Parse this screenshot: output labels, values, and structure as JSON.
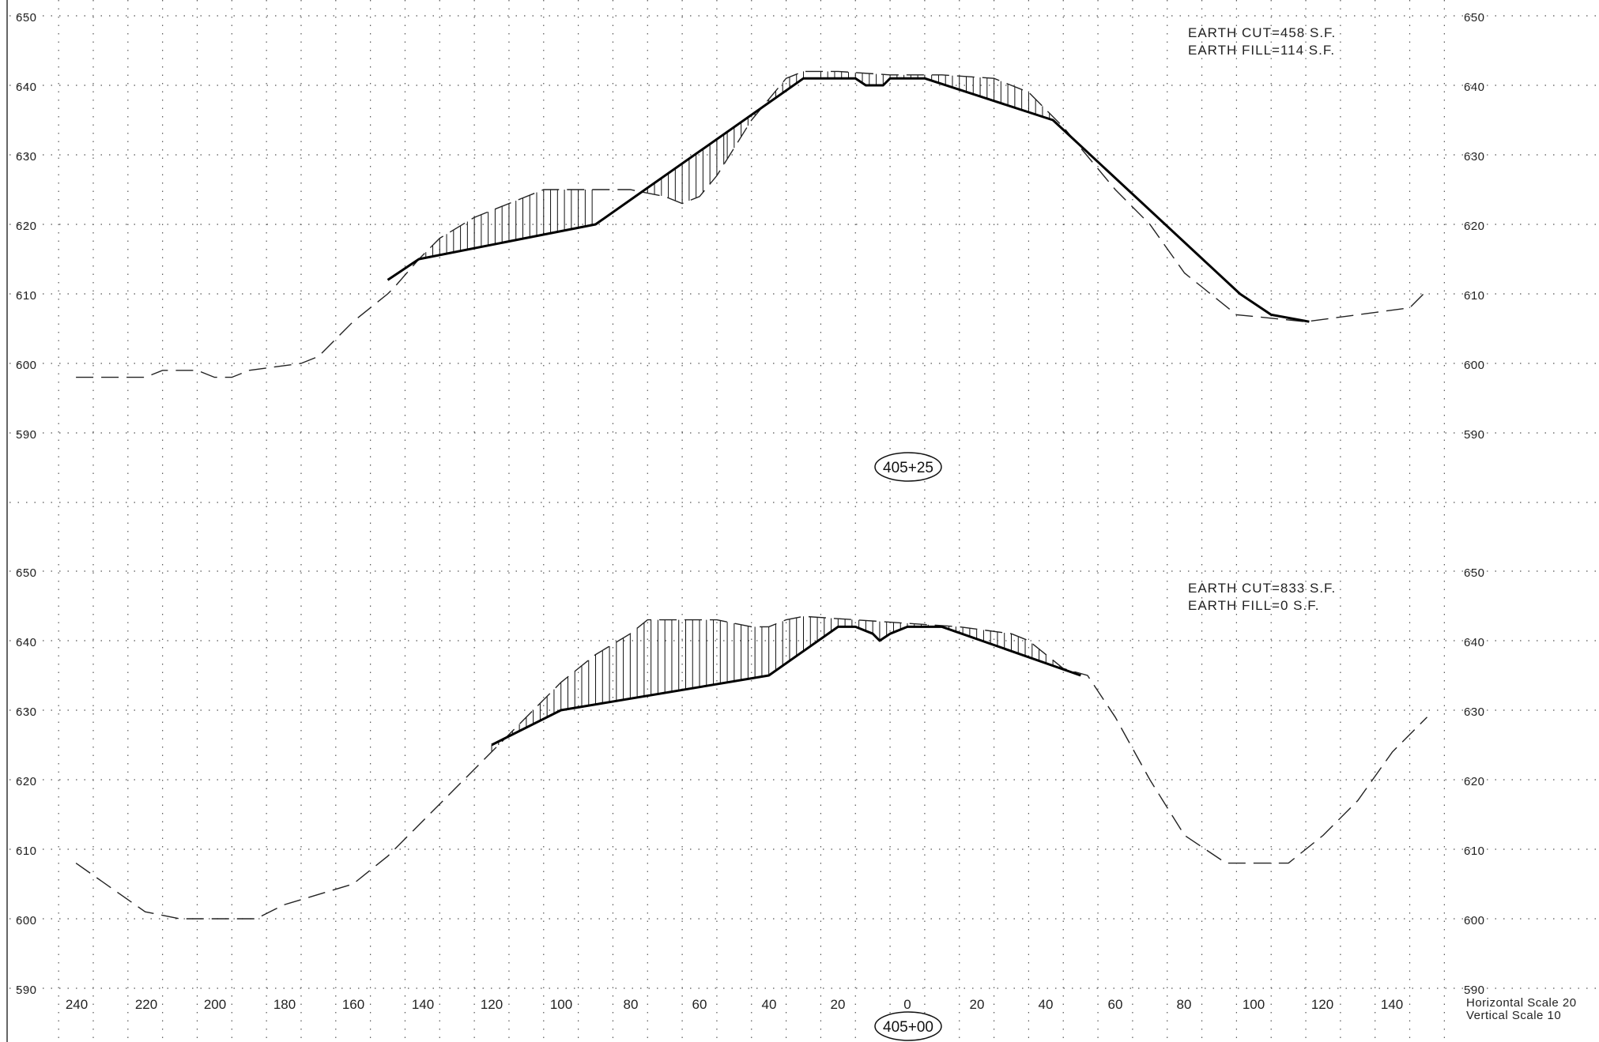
{
  "sections": [
    {
      "station": "405+25",
      "elevation_labels": [
        "650",
        "640",
        "630",
        "620",
        "610",
        "600",
        "590"
      ],
      "earth_cut": "EARTH  CUT=458  S.F.",
      "earth_fill": "EARTH  FILL=114  S.F.",
      "existing_ground": [
        [
          -240,
          598
        ],
        [
          -220,
          598
        ],
        [
          -215,
          599
        ],
        [
          -205,
          599
        ],
        [
          -200,
          598
        ],
        [
          -195,
          598
        ],
        [
          -190,
          599
        ],
        [
          -175,
          600
        ],
        [
          -170,
          601
        ],
        [
          -160,
          606
        ],
        [
          -150,
          610
        ],
        [
          -148,
          611
        ],
        [
          -141,
          615
        ],
        [
          -135,
          618
        ],
        [
          -125,
          621
        ],
        [
          -115,
          623
        ],
        [
          -105,
          625
        ],
        [
          -90,
          625
        ],
        [
          -80,
          625
        ],
        [
          -70,
          624
        ],
        [
          -65,
          623
        ],
        [
          -60,
          624
        ],
        [
          -55,
          627
        ],
        [
          -50,
          631
        ],
        [
          -45,
          635
        ],
        [
          -40,
          638
        ],
        [
          -35,
          641
        ],
        [
          -30,
          642
        ],
        [
          -20,
          642
        ],
        [
          -5,
          641.5
        ],
        [
          10,
          641.5
        ],
        [
          25,
          641
        ],
        [
          35,
          639
        ],
        [
          45,
          634
        ],
        [
          60,
          625
        ],
        [
          70,
          620
        ],
        [
          80,
          613
        ],
        [
          95,
          607
        ],
        [
          105,
          606.5
        ],
        [
          115,
          606
        ],
        [
          130,
          607
        ],
        [
          145,
          608
        ],
        [
          150,
          610.5
        ]
      ],
      "design_section": [
        [
          -150,
          612
        ],
        [
          -141,
          615
        ],
        [
          -90,
          620
        ],
        [
          -30,
          641
        ],
        [
          -25,
          641
        ],
        [
          -15,
          641
        ],
        [
          -12,
          640
        ],
        [
          -7,
          640
        ],
        [
          -5,
          641
        ],
        [
          5,
          641
        ],
        [
          42,
          635
        ],
        [
          96,
          610
        ],
        [
          105,
          607
        ],
        [
          116,
          606
        ]
      ],
      "cut_range": [
        -141,
        -90,
        -52,
        -30,
        -25,
        42
      ],
      "fill_range": [
        -75,
        -52
      ]
    },
    {
      "station": "405+00",
      "elevation_labels": [
        "650",
        "640",
        "630",
        "620",
        "610",
        "600",
        "590"
      ],
      "earth_cut": "EARTH  CUT=833  S.F.",
      "earth_fill": "EARTH  FILL=0  S.F.",
      "existing_ground": [
        [
          -240,
          608
        ],
        [
          -220,
          601
        ],
        [
          -210,
          600
        ],
        [
          -200,
          600
        ],
        [
          -188,
          600
        ],
        [
          -180,
          602
        ],
        [
          -160,
          605
        ],
        [
          -150,
          609
        ],
        [
          -140,
          614
        ],
        [
          -130,
          619
        ],
        [
          -120,
          624
        ],
        [
          -110,
          629
        ],
        [
          -100,
          634
        ],
        [
          -90,
          638
        ],
        [
          -80,
          641
        ],
        [
          -75,
          643
        ],
        [
          -70,
          643
        ],
        [
          -55,
          643
        ],
        [
          -45,
          642
        ],
        [
          -40,
          642
        ],
        [
          -35,
          643
        ],
        [
          -30,
          643.5
        ],
        [
          -15,
          643
        ],
        [
          0,
          642.5
        ],
        [
          15,
          642
        ],
        [
          30,
          641
        ],
        [
          35,
          640
        ],
        [
          45,
          636
        ],
        [
          52,
          635
        ],
        [
          60,
          629
        ],
        [
          70,
          620
        ],
        [
          80,
          612
        ],
        [
          92,
          608
        ],
        [
          110,
          608
        ],
        [
          120,
          612
        ],
        [
          130,
          617
        ],
        [
          140,
          624
        ],
        [
          150,
          629
        ]
      ],
      "design_section": [
        [
          -120,
          625
        ],
        [
          -100,
          630
        ],
        [
          -40,
          635
        ],
        [
          -20,
          642
        ],
        [
          -15,
          642
        ],
        [
          -10,
          641
        ],
        [
          -8,
          640
        ],
        [
          -5,
          641
        ],
        [
          0,
          642
        ],
        [
          5,
          642
        ],
        [
          10,
          642
        ],
        [
          50,
          635
        ]
      ],
      "cut_range": [
        -120,
        50
      ],
      "fill_range": []
    }
  ],
  "offset_labels": [
    "240",
    "220",
    "200",
    "180",
    "160",
    "140",
    "120",
    "100",
    "80",
    "60",
    "40",
    "20",
    "0",
    "20",
    "40",
    "60",
    "80",
    "100",
    "120",
    "140"
  ],
  "scale_notes": {
    "horizontal": "Horizontal  Scale  20",
    "vertical": "Vertical  Scale  10"
  }
}
